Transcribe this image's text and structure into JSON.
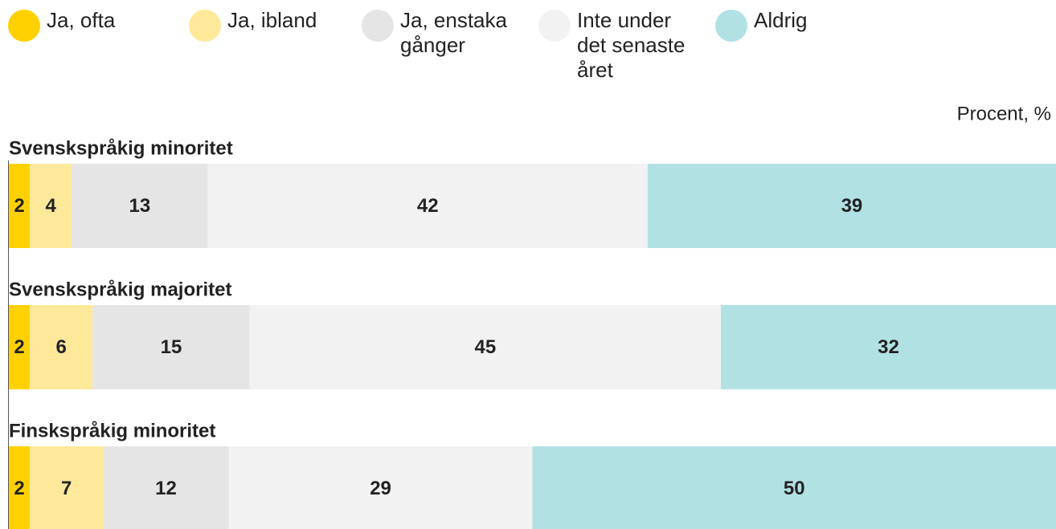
{
  "chart_data": {
    "type": "stacked_barh",
    "unit_label": "Procent, %",
    "categories": [
      "Svenskspråkig minoritet",
      "Svenskspråkig majoritet",
      "Finskspråkig minoritet"
    ],
    "xlim": [
      0,
      100
    ],
    "legend": "top",
    "series": [
      {
        "name": "Ja, ofta",
        "color": "#ffd100",
        "values": [
          2,
          2,
          2
        ]
      },
      {
        "name": "Ja, ibland",
        "color": "#fee99a",
        "values": [
          4,
          6,
          7
        ]
      },
      {
        "name": "Ja, enstaka gånger",
        "color": "#e5e5e5",
        "values": [
          13,
          15,
          12
        ]
      },
      {
        "name": "Inte under det senaste året",
        "color": "#f2f2f2",
        "values": [
          42,
          45,
          29
        ]
      },
      {
        "name": "Aldrig",
        "color": "#b2e1e4",
        "values": [
          39,
          32,
          50
        ]
      }
    ]
  }
}
